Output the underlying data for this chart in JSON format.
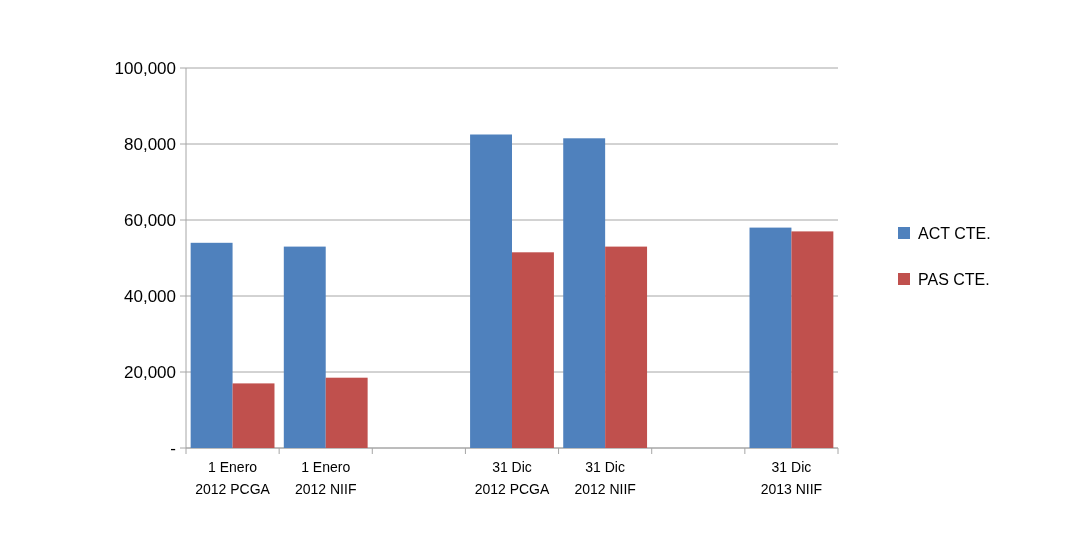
{
  "chart_data": {
    "type": "bar",
    "categories": [
      "1 Enero\n2012 PCGA",
      "1 Enero\n2012 NIIF",
      null,
      "31 Dic\n2012 PCGA",
      "31 Dic\n2012 NIIF",
      null,
      "31 Dic\n2013 NIIF"
    ],
    "series": [
      {
        "name": "ACT CTE.",
        "color": "#4f81bd",
        "values": [
          54000,
          53000,
          null,
          82500,
          81500,
          null,
          58000
        ]
      },
      {
        "name": "PAS CTE.",
        "color": "#c0504d",
        "values": [
          17000,
          18500,
          null,
          51500,
          53000,
          null,
          57000
        ]
      }
    ],
    "ylim": [
      0,
      100000
    ],
    "yticks": [
      {
        "value": 0,
        "label": "-"
      },
      {
        "value": 20000,
        "label": "20,000"
      },
      {
        "value": 40000,
        "label": "40,000"
      },
      {
        "value": 60000,
        "label": "60,000"
      },
      {
        "value": 80000,
        "label": "80,000"
      },
      {
        "value": 100000,
        "label": "100,000"
      }
    ],
    "grid": "y",
    "legend": "right"
  }
}
